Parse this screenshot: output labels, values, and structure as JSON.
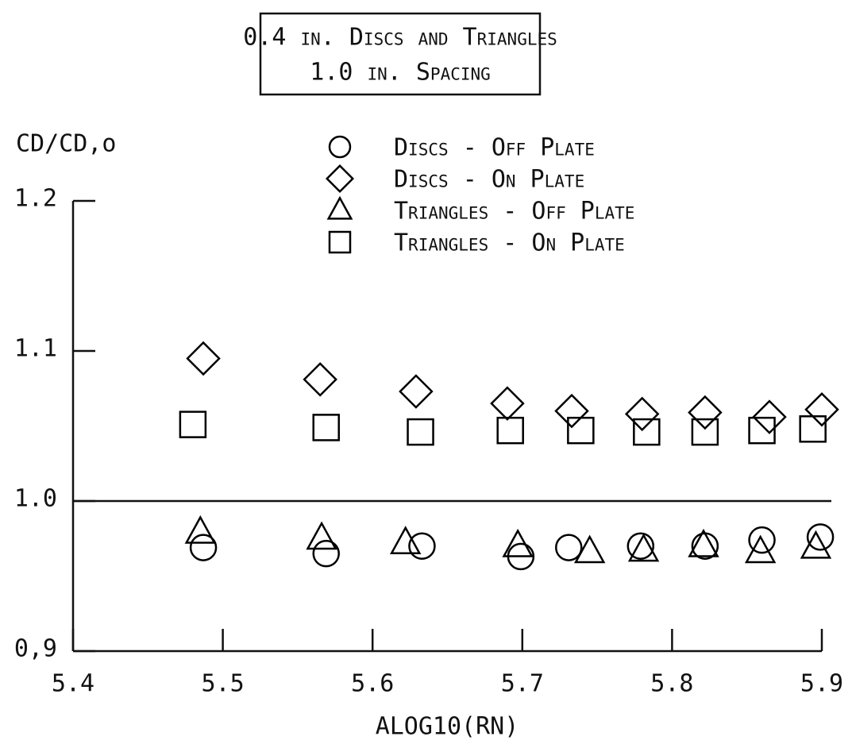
{
  "chart_data": {
    "type": "scatter",
    "title": [
      "0.4 in. Discs and Triangles",
      "1.0 in. Spacing"
    ],
    "y_label": "CD/CD,o",
    "x_label": "ALOG10(RN)",
    "xlim": [
      5.4,
      5.9
    ],
    "xticks": [
      5.4,
      5.5,
      5.6,
      5.7,
      5.8,
      5.9
    ],
    "ylim": [
      0.9,
      1.2
    ],
    "yticks": [
      {
        "value": 0.9,
        "label": "0,9"
      },
      {
        "value": 1,
        "label": "1.0"
      },
      1.1,
      1.2
    ],
    "hline": 1,
    "series": [
      {
        "name": "Discs - Off Plate",
        "marker": "circle",
        "color": "#000",
        "x": [
          5.487,
          5.569,
          5.633,
          5.699,
          5.731,
          5.779,
          5.822,
          5.86,
          5.899
        ],
        "values": [
          0.969,
          0.965,
          0.97,
          0.963,
          0.969,
          0.97,
          0.97,
          0.974,
          0.976
        ]
      },
      {
        "name": "Discs - On Plate",
        "marker": "diamond",
        "color": "#000",
        "x": [
          5.487,
          5.565,
          5.629,
          5.69,
          5.733,
          5.78,
          5.822,
          5.865,
          5.9
        ],
        "values": [
          1.095,
          1.081,
          1.073,
          1.065,
          1.06,
          1.058,
          1.059,
          1.056,
          1.061
        ]
      },
      {
        "name": "Triangles - Off Plate",
        "marker": "triangle",
        "color": "#000",
        "x": [
          5.485,
          5.566,
          5.622,
          5.697,
          5.745,
          5.781,
          5.821,
          5.859,
          5.896
        ],
        "values": [
          0.979,
          0.975,
          0.972,
          0.97,
          0.966,
          0.967,
          0.97,
          0.966,
          0.969
        ]
      },
      {
        "name": "Triangles - On Plate",
        "marker": "square",
        "color": "#000",
        "x": [
          5.48,
          5.569,
          5.632,
          5.692,
          5.739,
          5.783,
          5.822,
          5.86,
          5.894
        ],
        "values": [
          1.051,
          1.049,
          1.046,
          1.047,
          1.047,
          1.046,
          1.046,
          1.047,
          1.048
        ]
      }
    ]
  }
}
